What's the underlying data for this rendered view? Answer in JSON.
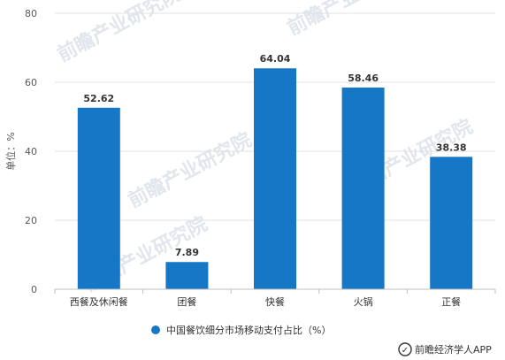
{
  "chart_data": {
    "type": "bar",
    "categories": [
      "西餐及休闲餐",
      "团餐",
      "快餐",
      "火锅",
      "正餐"
    ],
    "series": [
      {
        "name": "中国餐饮细分市场移动支付占比（%）",
        "values": [
          52.62,
          7.89,
          64.04,
          58.46,
          38.38
        ]
      }
    ],
    "ylabel": "单位：%",
    "ylim": [
      0,
      80
    ],
    "yticks": [
      0,
      20,
      40,
      60,
      80
    ],
    "grid": true,
    "legend_position": "bottom",
    "bar_color": "#1677c7"
  },
  "source": "前瞻经济学人APP",
  "watermark": "前瞻产业研究院"
}
